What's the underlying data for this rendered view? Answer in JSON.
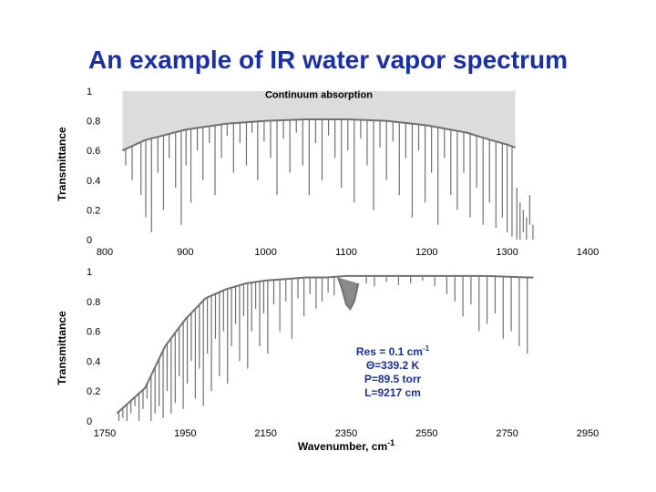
{
  "title": "An example of IR water vapor spectrum",
  "chart_data": [
    {
      "type": "line",
      "ylabel": "Transmittance",
      "xlabel": "",
      "xlim": [
        800,
        1400
      ],
      "ylim": [
        0,
        1
      ],
      "xticks": [
        "800",
        "900",
        "1000",
        "1100",
        "1200",
        "1300",
        "1400"
      ],
      "yticks": [
        "0",
        "0.2",
        "0.4",
        "0.6",
        "0.8",
        "1"
      ],
      "shaded_region": {
        "label": "Continuum absorption",
        "x": [
          822,
          850,
          900,
          950,
          1000,
          1050,
          1100,
          1150,
          1200,
          1250,
          1280,
          1300,
          1310
        ],
        "lower": [
          0.6,
          0.67,
          0.74,
          0.78,
          0.8,
          0.81,
          0.81,
          0.8,
          0.77,
          0.72,
          0.67,
          0.64,
          0.62
        ]
      },
      "envelope": {
        "x": [
          822,
          850,
          900,
          950,
          1000,
          1050,
          1100,
          1150,
          1200,
          1250,
          1280,
          1300,
          1310
        ],
        "y": [
          0.6,
          0.67,
          0.74,
          0.78,
          0.8,
          0.81,
          0.81,
          0.8,
          0.77,
          0.72,
          0.67,
          0.64,
          0.62
        ]
      },
      "absorption_lines": {
        "x": [
          826,
          834,
          845,
          851,
          858,
          866,
          873,
          880,
          888,
          895,
          901,
          907,
          915,
          922,
          930,
          937,
          945,
          952,
          960,
          968,
          976,
          983,
          990,
          998,
          1006,
          1014,
          1022,
          1030,
          1038,
          1046,
          1054,
          1062,
          1070,
          1078,
          1086,
          1094,
          1102,
          1110,
          1118,
          1126,
          1134,
          1142,
          1150,
          1158,
          1166,
          1174,
          1182,
          1190,
          1198,
          1206,
          1214,
          1222,
          1230,
          1238,
          1246,
          1254,
          1262,
          1270,
          1278,
          1286,
          1294,
          1300,
          1306
        ],
        "ymin": [
          0.5,
          0.4,
          0.3,
          0.15,
          0.05,
          0.45,
          0.2,
          0.55,
          0.35,
          0.1,
          0.5,
          0.25,
          0.6,
          0.4,
          0.65,
          0.3,
          0.55,
          0.7,
          0.45,
          0.65,
          0.5,
          0.72,
          0.4,
          0.66,
          0.55,
          0.3,
          0.68,
          0.45,
          0.72,
          0.5,
          0.3,
          0.65,
          0.4,
          0.7,
          0.55,
          0.35,
          0.6,
          0.25,
          0.68,
          0.5,
          0.2,
          0.62,
          0.4,
          0.66,
          0.3,
          0.55,
          0.15,
          0.6,
          0.25,
          0.45,
          0.1,
          0.55,
          0.3,
          0.2,
          0.45,
          0.15,
          0.35,
          0.1,
          0.25,
          0.08,
          0.15,
          0.05,
          0.02
        ]
      },
      "cutoff_lines": {
        "x": [
          1312,
          1316,
          1320,
          1324,
          1328,
          1332
        ],
        "ymin": [
          0.0,
          0.0,
          0.05,
          0.0,
          0.1,
          0.0
        ],
        "ymax": [
          0.35,
          0.25,
          0.2,
          0.15,
          0.3,
          0.1
        ]
      }
    },
    {
      "type": "line",
      "ylabel": "Transmittance",
      "xlabel": "Wavenumber, cm",
      "xlabel_superscript": "-1",
      "xlim": [
        1750,
        2950
      ],
      "ylim": [
        0,
        1
      ],
      "xticks": [
        "1750",
        "1950",
        "2150",
        "2350",
        "2550",
        "2750",
        "2950"
      ],
      "yticks": [
        "0",
        "0.2",
        "0.4",
        "0.6",
        "0.8",
        "1"
      ],
      "envelope": {
        "x": [
          1780,
          1850,
          1900,
          1950,
          2000,
          2050,
          2100,
          2150,
          2200,
          2250,
          2300,
          2350,
          2400,
          2500,
          2600,
          2700,
          2800,
          2815
        ],
        "y": [
          0.05,
          0.22,
          0.5,
          0.68,
          0.82,
          0.88,
          0.92,
          0.94,
          0.95,
          0.96,
          0.96,
          0.97,
          0.97,
          0.97,
          0.97,
          0.97,
          0.96,
          0.96
        ]
      },
      "band_dip": {
        "x": [
          2330,
          2340,
          2350,
          2360,
          2370,
          2380
        ],
        "y": [
          0.96,
          0.88,
          0.78,
          0.75,
          0.8,
          0.92
        ]
      },
      "absorption_lines": {
        "x": [
          1785,
          1795,
          1805,
          1815,
          1825,
          1835,
          1845,
          1855,
          1865,
          1875,
          1885,
          1895,
          1905,
          1915,
          1925,
          1935,
          1945,
          1955,
          1965,
          1975,
          1985,
          1995,
          2005,
          2015,
          2025,
          2035,
          2045,
          2055,
          2065,
          2075,
          2085,
          2095,
          2105,
          2115,
          2125,
          2135,
          2145,
          2155,
          2170,
          2185,
          2200,
          2215,
          2230,
          2245,
          2260,
          2275,
          2290,
          2305,
          2320,
          2400,
          2420,
          2450,
          2480,
          2510,
          2540,
          2570,
          2600,
          2620,
          2640,
          2660,
          2680,
          2700,
          2720,
          2740,
          2760,
          2780,
          2800
        ],
        "ymin": [
          0.0,
          0.02,
          0.0,
          0.05,
          0.1,
          0.0,
          0.08,
          0.15,
          0.0,
          0.05,
          0.1,
          0.02,
          0.2,
          0.05,
          0.12,
          0.3,
          0.08,
          0.25,
          0.4,
          0.15,
          0.35,
          0.1,
          0.45,
          0.2,
          0.55,
          0.3,
          0.6,
          0.25,
          0.5,
          0.65,
          0.4,
          0.7,
          0.35,
          0.6,
          0.75,
          0.5,
          0.72,
          0.45,
          0.78,
          0.6,
          0.8,
          0.55,
          0.82,
          0.7,
          0.85,
          0.75,
          0.8,
          0.86,
          0.84,
          0.92,
          0.9,
          0.93,
          0.91,
          0.92,
          0.94,
          0.9,
          0.85,
          0.8,
          0.7,
          0.78,
          0.6,
          0.65,
          0.72,
          0.55,
          0.6,
          0.5,
          0.45
        ]
      },
      "annotation": {
        "lines": [
          {
            "text": "Res = 0.1 cm",
            "sup": "-1"
          },
          {
            "text": "Θ=339.2 K",
            "sup": ""
          },
          {
            "text": "P=89.5 torr",
            "sup": ""
          },
          {
            "text": "L=9217 cm",
            "sup": ""
          }
        ]
      }
    }
  ]
}
